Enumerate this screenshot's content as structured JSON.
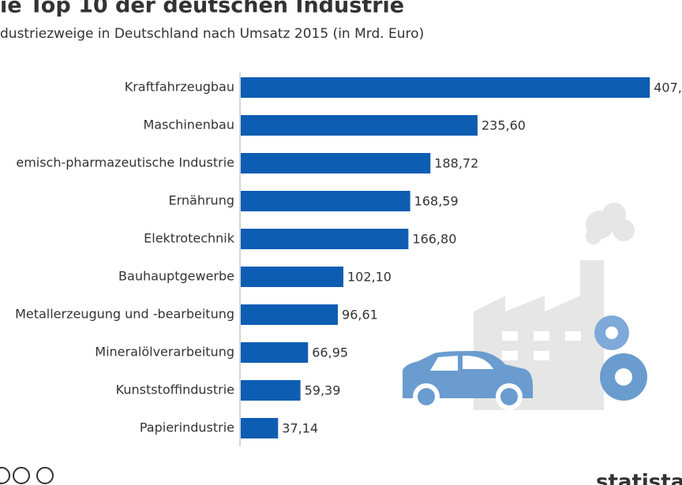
{
  "chart_data": {
    "type": "bar",
    "orientation": "horizontal",
    "title": "ie Top 10 der deutschen Industrie",
    "subtitle": "dustriezweige in Deutschland nach Umsatz 2015 (in Mrd. Euro)",
    "categories": [
      "Kraftfahrzeugbau",
      "Maschinenbau",
      "emisch-pharmazeutische Industrie",
      "Ernährung",
      "Elektrotechnik",
      "Bauhauptgewerbe",
      "Metallerzeugung und -bearbeitung",
      "Mineralölverarbeitung",
      "Kunststoffindustrie",
      "Papierindustrie"
    ],
    "values": [
      407,
      235.6,
      188.72,
      168.59,
      166.8,
      102.1,
      96.61,
      66.95,
      59.39,
      37.14
    ],
    "value_labels": [
      "407,",
      "235,60",
      "188,72",
      "168,59",
      "166,80",
      "102,10",
      "96,61",
      "66,95",
      "59,39",
      "37,14"
    ],
    "color": "#0d5db3"
  },
  "footer": {
    "brand": "statista"
  }
}
